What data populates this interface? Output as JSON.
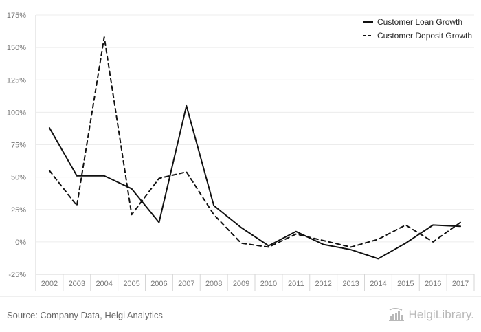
{
  "chart_data": {
    "type": "line",
    "title": "",
    "xlabel": "",
    "ylabel": "",
    "categories": [
      "2002",
      "2003",
      "2004",
      "2005",
      "2006",
      "2007",
      "2008",
      "2009",
      "2010",
      "2011",
      "2012",
      "2013",
      "2014",
      "2015",
      "2016",
      "2017"
    ],
    "ylim": [
      -25,
      175
    ],
    "yticks": [
      -25,
      0,
      25,
      50,
      75,
      100,
      125,
      150,
      175
    ],
    "ytick_labels": [
      "-25%",
      "0%",
      "25%",
      "50%",
      "75%",
      "100%",
      "125%",
      "150%",
      "175%"
    ],
    "series": [
      {
        "name": "Customer Loan Growth",
        "style": "solid",
        "color": "#111111",
        "values": [
          88,
          51,
          51,
          41,
          15,
          105,
          28,
          11,
          -3,
          8,
          -2,
          -6,
          -13,
          -1,
          13,
          12
        ]
      },
      {
        "name": "Customer Deposit Growth",
        "style": "dashed",
        "color": "#111111",
        "values": [
          55,
          28,
          158,
          21,
          49,
          54,
          21,
          -1,
          -4,
          6,
          1,
          -4,
          2,
          13,
          0,
          15
        ]
      }
    ],
    "grid": true,
    "legend_position": "top-right"
  },
  "footer": {
    "source": "Source: Company Data, Helgi Analytics",
    "brand_name": "HelgiLibrary.",
    "brand_icon": "helgi-library-icon"
  }
}
